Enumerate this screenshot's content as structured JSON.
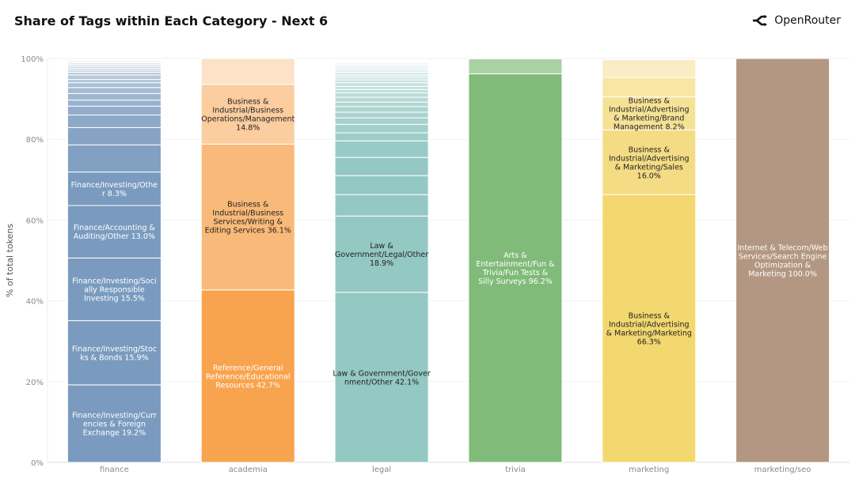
{
  "header": {
    "title": "Share of Tags within Each Category - Next 6",
    "brand": "OpenRouter",
    "brand_icon": "openrouter-logo-icon"
  },
  "chart_data": {
    "type": "bar",
    "stacked": true,
    "title": "Share of Tags within Each Category - Next 6",
    "ylabel": "% of total tokens",
    "xlabel": "",
    "ylim": [
      0,
      100
    ],
    "yticks": [
      "0%",
      "20%",
      "40%",
      "60%",
      "80%",
      "100%"
    ],
    "grid": true,
    "categories": [
      "finance",
      "academia",
      "legal",
      "trivia",
      "marketing",
      "marketing/seo"
    ],
    "bars": [
      {
        "category": "finance",
        "color": "#7a9bbf",
        "text_color": "#ffffff",
        "segments": [
          {
            "value": 19.2,
            "label": [
              "Finance/Investing/Curr",
              "encies & Foreign",
              "Exchange 19.2%"
            ]
          },
          {
            "value": 15.9,
            "label": [
              "Finance/Investing/Stoc",
              "ks & Bonds 15.9%"
            ]
          },
          {
            "value": 15.5,
            "label": [
              "Finance/Investing/Soci",
              "ally Responsible",
              "Investing 15.5%"
            ]
          },
          {
            "value": 13.0,
            "label": [
              "Finance/Accounting &",
              "Auditing/Other 13.0%"
            ]
          },
          {
            "value": 8.3,
            "label": [
              "Finance/Investing/Othe",
              "r 8.3%"
            ]
          },
          {
            "value": 6.7
          },
          {
            "value": 4.3
          },
          {
            "value": 3.1
          },
          {
            "value": 2.2
          },
          {
            "value": 1.5
          },
          {
            "value": 1.6
          },
          {
            "value": 1.5
          },
          {
            "value": 1.2
          },
          {
            "value": 0.8
          },
          {
            "value": 1.1
          },
          {
            "value": 0.7
          },
          {
            "value": 0.5
          },
          {
            "value": 0.5
          },
          {
            "value": 0.5
          },
          {
            "value": 0.4
          },
          {
            "value": 0.4
          },
          {
            "value": 0.3
          },
          {
            "value": 0.3
          }
        ]
      },
      {
        "category": "academia",
        "colors": [
          "#f8a44e",
          "#f9ba79",
          "#fbcd9f",
          "#fde2c7"
        ],
        "text_colors": [
          "#ffffff",
          "#222222",
          "#222222",
          "#222222"
        ],
        "segments": [
          {
            "value": 42.7,
            "label": [
              "Reference/General",
              "Reference/Educational",
              "Resources 42.7%"
            ]
          },
          {
            "value": 36.1,
            "label": [
              "Business &",
              "Industrial/Business",
              "Services/Writing &",
              "Editing Services 36.1%"
            ]
          },
          {
            "value": 14.8,
            "label": [
              "Business &",
              "Industrial/Business",
              "Operations/Management",
              "14.8%"
            ]
          },
          {
            "value": 6.4
          }
        ]
      },
      {
        "category": "legal",
        "color": "#94c8c3",
        "text_color": "#222222",
        "segments": [
          {
            "value": 42.1,
            "label": [
              "Law & Government/Gover",
              "nment/Other 42.1%"
            ]
          },
          {
            "value": 18.9,
            "label": [
              "Law &",
              "Government/Legal/Other",
              "18.9%"
            ]
          },
          {
            "value": 5.3
          },
          {
            "value": 4.7
          },
          {
            "value": 4.5
          },
          {
            "value": 4.1
          },
          {
            "value": 2.0
          },
          {
            "value": 2.1
          },
          {
            "value": 1.6
          },
          {
            "value": 1.4
          },
          {
            "value": 1.4
          },
          {
            "value": 1.1
          },
          {
            "value": 1.2
          },
          {
            "value": 1.1
          },
          {
            "value": 0.8
          },
          {
            "value": 0.8
          },
          {
            "value": 0.9
          },
          {
            "value": 0.7
          },
          {
            "value": 0.6
          },
          {
            "value": 0.6
          },
          {
            "value": 0.7
          },
          {
            "value": 0.5
          },
          {
            "value": 0.5
          },
          {
            "value": 0.5
          },
          {
            "value": 0.4
          },
          {
            "value": 0.4
          }
        ]
      },
      {
        "category": "trivia",
        "colors": [
          "#80bb79",
          "#a8d2a2"
        ],
        "text_colors": [
          "#ffffff",
          "#222222"
        ],
        "segments": [
          {
            "value": 96.2,
            "label": [
              "Arts &",
              "Entertainment/Fun &",
              "Trivia/Fun Tests &",
              "Silly Surveys 96.2%"
            ]
          },
          {
            "value": 3.7
          }
        ]
      },
      {
        "category": "marketing",
        "colors": [
          "#f2d86f",
          "#f4dc84",
          "#f6e296",
          "#f7e6a5",
          "#f9edc4"
        ],
        "text_colors": [
          "#222222",
          "#222222",
          "#222222",
          "#222222",
          "#222222"
        ],
        "segments": [
          {
            "value": 66.3,
            "label": [
              "Business &",
              "Industrial/Advertising",
              "& Marketing/Marketing",
              "66.3%"
            ]
          },
          {
            "value": 16.0,
            "label": [
              "Business &",
              "Industrial/Advertising",
              "& Marketing/Sales",
              "16.0%"
            ]
          },
          {
            "value": 8.2,
            "label": [
              "Business &",
              "Industrial/Advertising",
              "& Marketing/Brand",
              "Management 8.2%"
            ]
          },
          {
            "value": 4.8
          },
          {
            "value": 4.4
          }
        ]
      },
      {
        "category": "marketing/seo",
        "colors": [
          "#b39782"
        ],
        "text_colors": [
          "#ffffff"
        ],
        "segments": [
          {
            "value": 100.0,
            "label": [
              "Internet & Telecom/Web",
              "Services/Search Engine",
              "Optimization &",
              "Marketing 100.0%"
            ]
          }
        ]
      }
    ]
  }
}
